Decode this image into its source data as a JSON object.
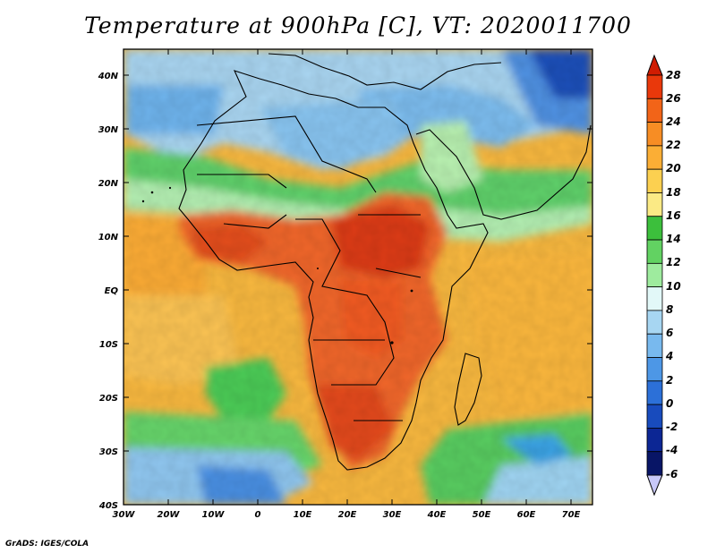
{
  "title": "Temperature at 900hPa [C], VT: 2020011700",
  "credit": "GrADS: IGES/COLA",
  "map": {
    "lat_labels": [
      "40N",
      "30N",
      "20N",
      "10N",
      "EQ",
      "10S",
      "20S",
      "30S",
      "40S"
    ],
    "lon_labels": [
      "30W",
      "20W",
      "10W",
      "0",
      "10E",
      "20E",
      "30E",
      "40E",
      "50E",
      "60E",
      "70E"
    ],
    "lat_range": [
      -40,
      45
    ],
    "lon_range": [
      -30,
      75
    ]
  },
  "colorbar": {
    "levels": [
      "28",
      "26",
      "24",
      "22",
      "20",
      "18",
      "16",
      "14",
      "12",
      "10",
      "8",
      "6",
      "4",
      "2",
      "0",
      "-2",
      "-4",
      "-6"
    ],
    "colors": [
      "#d01c02",
      "#e9380b",
      "#f26418",
      "#f78d24",
      "#fbae35",
      "#fcd050",
      "#fbea85",
      "#3cbf3c",
      "#62d262",
      "#9eeb9e",
      "#e2f8f8",
      "#a7d6f2",
      "#78b9ee",
      "#4d97e6",
      "#2c70d8",
      "#184bbd",
      "#0c2694",
      "#081566",
      "#c8c8f8"
    ]
  },
  "field_color_key": [
    "ocean-warm",
    "land-hot",
    "cool-north",
    "green-band",
    "yellow-band"
  ]
}
